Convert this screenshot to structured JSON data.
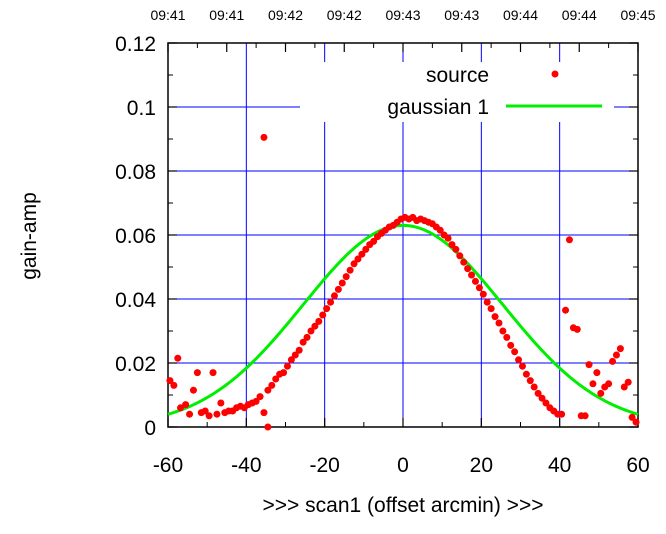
{
  "chart_data": {
    "type": "scatter",
    "xlabel": ">>> scan1 (offset arcmin) >>>",
    "ylabel": "gain-amp",
    "xlim": [
      -60,
      60
    ],
    "ylim": [
      0,
      0.12
    ],
    "grid": true,
    "legend_position": "top-right",
    "x_ticks": [
      "-60",
      "-40",
      "-20",
      "0",
      "20",
      "40",
      "60"
    ],
    "y_ticks": [
      "0",
      "0.02",
      "0.04",
      "0.06",
      "0.08",
      "0.1",
      "0.12"
    ],
    "top_ticks": [
      "09:41",
      "09:41",
      "09:42",
      "09:42",
      "09:43",
      "09:43",
      "09:44",
      "09:44",
      "09:45"
    ],
    "series": [
      {
        "name": "source",
        "style": "points",
        "color": "#ff0000",
        "x": [
          -59.5,
          -58.5,
          -57.5,
          -56.8,
          -55.5,
          -54.5,
          -53.5,
          -52.5,
          -51.5,
          -50.5,
          -49.5,
          -48.5,
          -47.5,
          -46.5,
          -45.5,
          -44.5,
          -43.5,
          -42.5,
          -41.5,
          -40.5,
          -39.5,
          -38.5,
          -37.5,
          -36.5,
          -35.5,
          -34.5,
          -33.5,
          -32.5,
          -31.5,
          -30.5,
          -29.5,
          -28.5,
          -27.5,
          -26.5,
          -25.5,
          -24.5,
          -23.5,
          -22.5,
          -21.5,
          -20.5,
          -19.5,
          -18.5,
          -17.5,
          -16.5,
          -15.5,
          -14.5,
          -13.5,
          -12.5,
          -11.5,
          -10.5,
          -9.5,
          -8.5,
          -7.5,
          -6.5,
          -5.5,
          -4.5,
          -3.5,
          -2.5,
          -1.5,
          -0.5,
          0.5,
          1.5,
          2.5,
          3.5,
          4.5,
          5.5,
          6.5,
          7.5,
          8.5,
          9.5,
          10.5,
          11.5,
          12.5,
          13.5,
          14.5,
          15.5,
          16.5,
          17.5,
          18.5,
          19.5,
          20.5,
          21.5,
          22.5,
          23.5,
          24.5,
          25.5,
          26.5,
          27.5,
          28.5,
          29.5,
          30.5,
          31.5,
          32.5,
          33.5,
          34.5,
          35.5,
          36.5,
          37.5,
          38.5,
          39.5,
          40.5,
          41.5,
          42.5,
          43.5,
          44.5,
          45.5,
          46.5,
          47.5,
          48.5,
          49.5,
          50.5,
          51.5,
          52.5,
          53.5,
          54.5,
          55.5,
          56.5,
          57.5,
          58.5,
          59.5,
          -35.5,
          -34.5
        ],
        "y": [
          0.0145,
          0.013,
          0.0215,
          0.006,
          0.007,
          0.004,
          0.0115,
          0.017,
          0.0045,
          0.005,
          0.0035,
          0.017,
          0.004,
          0.0075,
          0.0045,
          0.005,
          0.005,
          0.006,
          0.0065,
          0.006,
          0.007,
          0.0075,
          0.008,
          0.0095,
          0.0905,
          0.0115,
          0.013,
          0.015,
          0.0165,
          0.017,
          0.019,
          0.021,
          0.0225,
          0.024,
          0.0265,
          0.028,
          0.03,
          0.0315,
          0.033,
          0.035,
          0.037,
          0.039,
          0.041,
          0.043,
          0.045,
          0.047,
          0.049,
          0.051,
          0.0525,
          0.054,
          0.0555,
          0.057,
          0.058,
          0.0595,
          0.0605,
          0.0615,
          0.0625,
          0.063,
          0.064,
          0.065,
          0.0655,
          0.065,
          0.0655,
          0.0645,
          0.065,
          0.0645,
          0.064,
          0.0635,
          0.0625,
          0.0615,
          0.06,
          0.059,
          0.057,
          0.0555,
          0.0535,
          0.0515,
          0.0495,
          0.0475,
          0.0455,
          0.0435,
          0.0415,
          0.039,
          0.037,
          0.0345,
          0.0325,
          0.03,
          0.028,
          0.0255,
          0.0235,
          0.021,
          0.019,
          0.0165,
          0.0145,
          0.0125,
          0.0105,
          0.009,
          0.0075,
          0.006,
          0.005,
          0.004,
          0.004,
          0.0365,
          0.0585,
          0.031,
          0.0305,
          0.0035,
          0.0035,
          0.0195,
          0.0135,
          0.017,
          0.0105,
          0.0125,
          0.0135,
          0.0205,
          0.0225,
          0.0245,
          0.0125,
          0.014,
          0.003,
          0.0015,
          0.0045,
          0.0
        ]
      },
      {
        "name": "gaussian 1",
        "style": "line",
        "color": "#00ee00",
        "amplitude": 0.063,
        "center": 0,
        "sigma": 25.5,
        "offset": 0.0
      }
    ]
  }
}
